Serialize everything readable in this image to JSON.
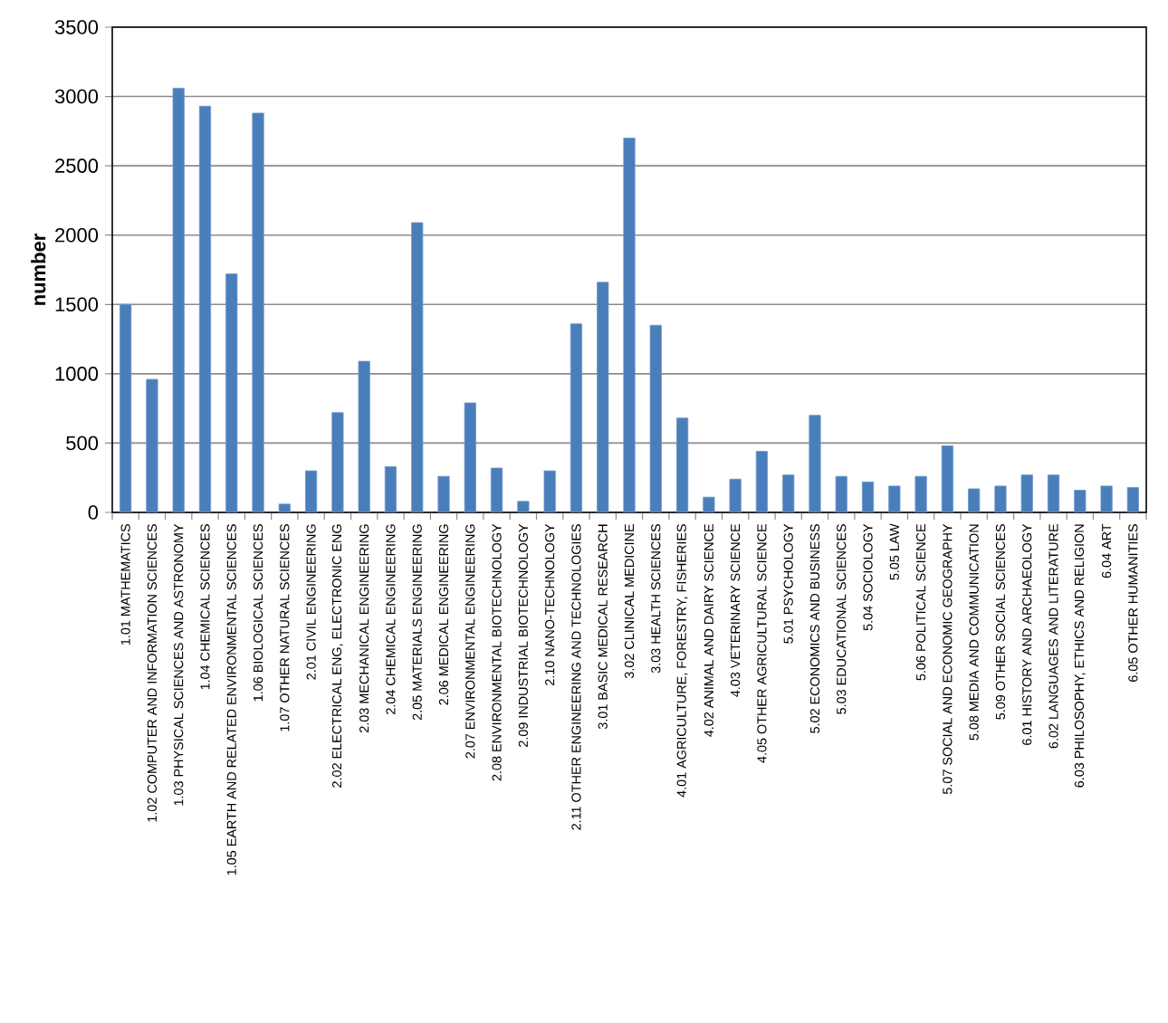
{
  "chart_data": {
    "type": "bar",
    "ylabel": "number",
    "categories": [
      "1.01 MATHEMATICS",
      "1.02 COMPUTER AND INFORMATION SCIENCES",
      "1.03 PHYSICAL SCIENCES AND ASTRONOMY",
      "1.04 CHEMICAL SCIENCES",
      "1.05 EARTH AND RELATED ENVIRONMENTAL SCIENCES",
      "1.06 BIOLOGICAL SCIENCES",
      "1.07 OTHER NATURAL SCIENCES",
      "2.01 CIVIL ENGINEERING",
      "2.02 ELECTRICAL ENG, ELECTRONIC ENG",
      "2.03 MECHANICAL ENGINEERING",
      "2.04 CHEMICAL ENGINEERING",
      "2.05 MATERIALS ENGINEERING",
      "2.06 MEDICAL ENGINEERING",
      "2.07 ENVIRONMENTAL ENGINEERING",
      "2.08 ENVIRONMENTAL BIOTECHNOLOGY",
      "2.09 INDUSTRIAL BIOTECHNOLOGY",
      "2.10 NANO-TECHNOLOGY",
      "2.11 OTHER ENGINEERING AND TECHNOLOGIES",
      "3.01 BASIC MEDICAL RESEARCH",
      "3.02 CLINICAL MEDICINE",
      "3.03 HEALTH SCIENCES",
      "4.01 AGRICULTURE, FORESTRY, FISHERIES",
      "4.02 ANIMAL AND DAIRY SCIENCE",
      "4.03 VETERINARY SCIENCE",
      "4.05 OTHER AGRICULTURAL SCIENCE",
      "5.01 PSYCHOLOGY",
      "5.02 ECONOMICS AND BUSINESS",
      "5.03 EDUCATIONAL SCIENCES",
      "5.04 SOCIOLOGY",
      "5.05 LAW",
      "5.06 POLITICAL SCIENCE",
      "5.07 SOCIAL AND ECONOMIC GEOGRAPHY",
      "5.08 MEDIA AND COMMUNICATION",
      "5.09 OTHER SOCIAL SCIENCES",
      "6.01 HISTORY AND ARCHAEOLOGY",
      "6.02 LANGUAGES AND LITERATURE",
      "6.03 PHILOSOPHY, ETHICS AND RELIGION",
      "6.04 ART",
      "6.05 OTHER HUMANITIES"
    ],
    "values": [
      1500,
      960,
      3060,
      2930,
      1720,
      2880,
      60,
      300,
      720,
      1090,
      330,
      2090,
      260,
      790,
      320,
      80,
      300,
      1360,
      1660,
      2700,
      1350,
      680,
      110,
      240,
      440,
      270,
      700,
      260,
      220,
      190,
      260,
      480,
      170,
      190,
      270,
      270,
      160,
      190,
      180
    ],
    "color": "#4a7ebb",
    "ylim": [
      0,
      3500
    ],
    "yticks": [
      0,
      500,
      1000,
      1500,
      2000,
      2500,
      3000,
      3500
    ],
    "grid": "y"
  }
}
